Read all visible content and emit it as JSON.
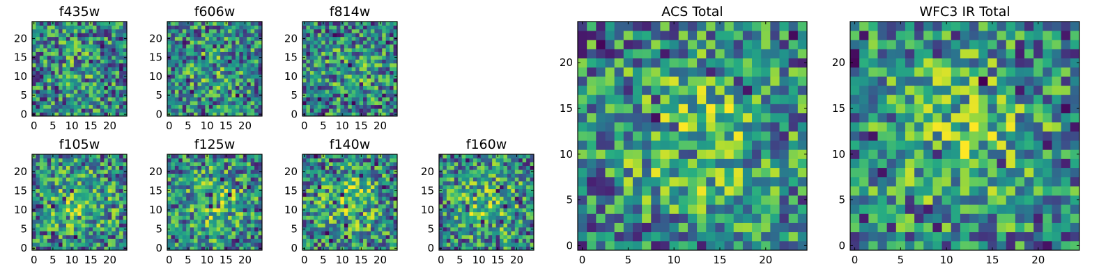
{
  "chart_data": [
    {
      "type": "heatmap",
      "title": "f435w",
      "grid_size": 25,
      "xticks": [
        "0",
        "5",
        "10",
        "15",
        "20"
      ],
      "yticks": [
        "0",
        "5",
        "10",
        "15",
        "20"
      ],
      "xlim": [
        0,
        24
      ],
      "ylim": [
        0,
        24
      ],
      "colormap": "viridis"
    },
    {
      "type": "heatmap",
      "title": "f606w",
      "grid_size": 25,
      "xticks": [
        "0",
        "5",
        "10",
        "15",
        "20"
      ],
      "yticks": [
        "0",
        "5",
        "10",
        "15",
        "20"
      ],
      "xlim": [
        0,
        24
      ],
      "ylim": [
        0,
        24
      ],
      "colormap": "viridis"
    },
    {
      "type": "heatmap",
      "title": "f814w",
      "grid_size": 25,
      "xticks": [
        "0",
        "5",
        "10",
        "15",
        "20"
      ],
      "yticks": [
        "0",
        "5",
        "10",
        "15",
        "20"
      ],
      "xlim": [
        0,
        24
      ],
      "ylim": [
        0,
        24
      ],
      "colormap": "viridis"
    },
    {
      "type": "heatmap",
      "title": "f105w",
      "grid_size": 25,
      "xticks": [
        "0",
        "5",
        "10",
        "15",
        "20"
      ],
      "yticks": [
        "0",
        "5",
        "10",
        "15",
        "20"
      ],
      "xlim": [
        0,
        24
      ],
      "ylim": [
        0,
        24
      ],
      "colormap": "viridis"
    },
    {
      "type": "heatmap",
      "title": "f125w",
      "grid_size": 25,
      "xticks": [
        "0",
        "5",
        "10",
        "15",
        "20"
      ],
      "yticks": [
        "0",
        "5",
        "10",
        "15",
        "20"
      ],
      "xlim": [
        0,
        24
      ],
      "ylim": [
        0,
        24
      ],
      "colormap": "viridis"
    },
    {
      "type": "heatmap",
      "title": "f140w",
      "grid_size": 25,
      "xticks": [
        "0",
        "5",
        "10",
        "15",
        "20"
      ],
      "yticks": [
        "0",
        "5",
        "10",
        "15",
        "20"
      ],
      "xlim": [
        0,
        24
      ],
      "ylim": [
        0,
        24
      ],
      "colormap": "viridis"
    },
    {
      "type": "heatmap",
      "title": "f160w",
      "grid_size": 25,
      "xticks": [
        "0",
        "5",
        "10",
        "15",
        "20"
      ],
      "yticks": [
        "0",
        "5",
        "10",
        "15",
        "20"
      ],
      "xlim": [
        0,
        24
      ],
      "ylim": [
        0,
        24
      ],
      "colormap": "viridis"
    },
    {
      "type": "heatmap",
      "title": "ACS Total",
      "grid_size": 25,
      "xticks": [
        "0",
        "5",
        "10",
        "15",
        "20"
      ],
      "yticks": [
        "0",
        "5",
        "10",
        "15",
        "20"
      ],
      "xlim": [
        0,
        24
      ],
      "ylim": [
        0,
        24
      ],
      "colormap": "viridis"
    },
    {
      "type": "heatmap",
      "title": "WFC3 IR Total",
      "grid_size": 25,
      "xticks": [
        "0",
        "5",
        "10",
        "15",
        "20"
      ],
      "yticks": [
        "0",
        "5",
        "10",
        "15",
        "20"
      ],
      "xlim": [
        0,
        24
      ],
      "ylim": [
        0,
        24
      ],
      "colormap": "viridis"
    }
  ],
  "colors": {
    "viridis_low": "#440154",
    "viridis_mid_low": "#3b528b",
    "viridis_mid": "#21918c",
    "viridis_mid_high": "#5ec962",
    "viridis_high": "#fde725"
  }
}
